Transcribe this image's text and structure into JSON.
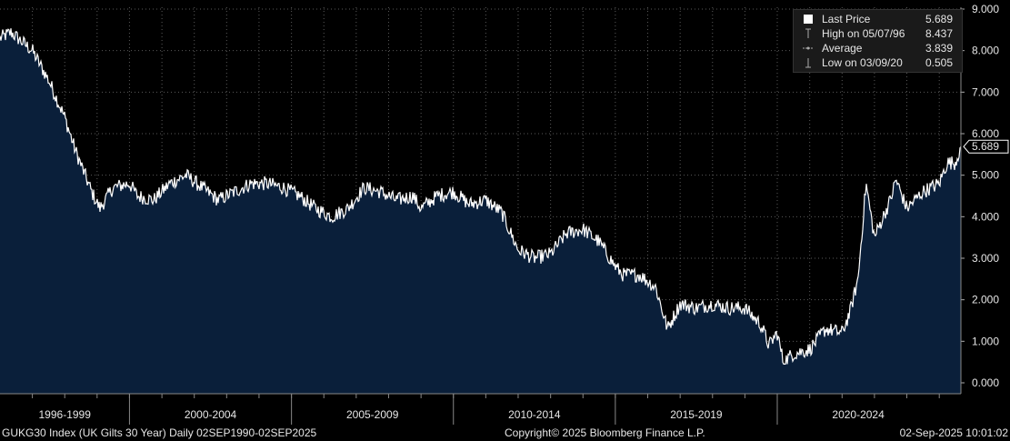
{
  "chart_data": {
    "type": "area",
    "title": "",
    "xlabel": "",
    "ylabel": "",
    "xlim": [
      "1996-01-02",
      "2025-09-02"
    ],
    "ylim": [
      0,
      9
    ],
    "y_ticks": [
      "0.000",
      "1.000",
      "2.000",
      "3.000",
      "4.000",
      "5.000",
      "6.000",
      "7.000",
      "8.000",
      "9.000"
    ],
    "x_tick_labels": [
      "1996-1999",
      "2000-2004",
      "2005-2009",
      "2010-2014",
      "2015-2019",
      "2020-2024"
    ],
    "grid": true,
    "legend_position": "top-right",
    "current_value_label": "5.689",
    "series": [
      {
        "name": "Last Price",
        "x": [
          "1996-01-02",
          "1996-05-07",
          "1996-12-31",
          "1997-06-30",
          "1997-12-31",
          "1998-04-30",
          "1998-10-31",
          "1999-01-31",
          "1999-06-30",
          "1999-12-31",
          "2000-03-31",
          "2000-09-30",
          "2001-03-31",
          "2001-09-30",
          "2002-03-31",
          "2002-09-30",
          "2003-03-31",
          "2003-09-30",
          "2004-03-31",
          "2004-09-30",
          "2005-03-31",
          "2005-09-30",
          "2006-03-31",
          "2006-09-30",
          "2007-03-31",
          "2007-09-30",
          "2008-03-31",
          "2008-09-30",
          "2008-12-31",
          "2009-06-30",
          "2009-12-31",
          "2010-06-30",
          "2010-12-31",
          "2011-06-30",
          "2011-12-31",
          "2012-06-30",
          "2012-12-31",
          "2013-06-30",
          "2013-12-31",
          "2014-06-30",
          "2014-12-31",
          "2015-03-31",
          "2015-09-30",
          "2016-03-31",
          "2016-08-12",
          "2016-12-31",
          "2017-06-30",
          "2017-12-31",
          "2018-06-30",
          "2018-12-31",
          "2019-06-30",
          "2019-09-30",
          "2019-12-31",
          "2020-03-09",
          "2020-06-30",
          "2020-12-31",
          "2021-06-30",
          "2021-12-31",
          "2022-03-31",
          "2022-06-30",
          "2022-09-28",
          "2022-12-31",
          "2023-06-30",
          "2023-08-31",
          "2023-12-31",
          "2024-06-30",
          "2024-12-31",
          "2025-03-31",
          "2025-06-30",
          "2025-09-02"
        ],
        "y": [
          8.3,
          8.437,
          8.0,
          7.3,
          6.4,
          5.6,
          4.6,
          4.2,
          4.7,
          4.8,
          4.5,
          4.4,
          4.8,
          5.0,
          4.7,
          4.4,
          4.6,
          4.8,
          4.8,
          4.7,
          4.5,
          4.2,
          4.0,
          4.2,
          4.7,
          4.6,
          4.4,
          4.5,
          4.2,
          4.5,
          4.6,
          4.3,
          4.4,
          4.1,
          3.2,
          3.0,
          3.1,
          3.6,
          3.7,
          3.4,
          2.8,
          2.6,
          2.6,
          2.3,
          1.3,
          1.9,
          1.8,
          1.9,
          1.8,
          1.8,
          1.4,
          0.9,
          1.2,
          0.505,
          0.7,
          0.8,
          1.3,
          1.2,
          1.7,
          2.5,
          4.8,
          3.5,
          4.4,
          4.9,
          4.2,
          4.6,
          4.8,
          5.3,
          5.3,
          5.689
        ]
      }
    ],
    "stats": [
      {
        "label": "Last Price",
        "value": "5.689"
      },
      {
        "label": "High on 05/07/96",
        "value": "8.437"
      },
      {
        "label": "Average",
        "value": "3.839"
      },
      {
        "label": "Low on 03/09/20",
        "value": "0.505"
      }
    ]
  },
  "colors": {
    "background": "#000000",
    "fill": "#0a1f3a",
    "line": "#ffffff",
    "grid": "#5a5a5a",
    "text": "#e6e6e6"
  },
  "footer": {
    "left": "GUKG30 Index (UK Gilts 30 Year)  Daily 02SEP1990-02SEP2025",
    "center": "Copyright© 2025 Bloomberg Finance L.P.",
    "right": "02-Sep-2025 10:01:02"
  }
}
